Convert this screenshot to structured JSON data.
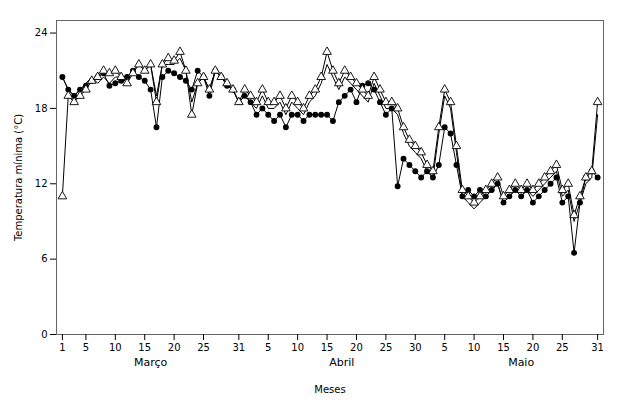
{
  "chart_data": {
    "type": "line",
    "xlabel": "Meses",
    "ylabel": "Temperatura mínima (°C)",
    "categories": [
      "1",
      null,
      null,
      null,
      "5",
      null,
      null,
      null,
      null,
      "10",
      null,
      null,
      null,
      null,
      "15",
      null,
      null,
      null,
      null,
      "20",
      null,
      null,
      null,
      null,
      "25",
      null,
      null,
      null,
      null,
      null,
      "31",
      null,
      null,
      null,
      null,
      "5",
      null,
      null,
      null,
      null,
      "10",
      null,
      null,
      null,
      null,
      "15",
      null,
      null,
      null,
      null,
      "20",
      null,
      null,
      null,
      null,
      "25",
      null,
      null,
      null,
      null,
      "30",
      null,
      null,
      null,
      null,
      "5",
      null,
      null,
      null,
      null,
      "10",
      null,
      null,
      null,
      null,
      "15",
      null,
      null,
      null,
      null,
      "20",
      null,
      null,
      null,
      null,
      "25",
      null,
      null,
      null,
      null,
      null,
      "31"
    ],
    "annotations": [
      {
        "text": "Março",
        "x": 15
      },
      {
        "text": "Abril",
        "x": 47.5
      },
      {
        "text": "Maio",
        "x": 78
      }
    ],
    "ylim": [
      0,
      25
    ],
    "yticks": [
      0,
      6,
      12,
      18,
      24
    ],
    "grid": false,
    "series": [
      {
        "color": "black",
        "line_style": "solid",
        "values": [
          20.5,
          19.5,
          19.0,
          19.5,
          20.0,
          20.5,
          20.0,
          20.5,
          20.0,
          20.5,
          20.5,
          20.5,
          21.0,
          21.5,
          21.0,
          21.5,
          19.0,
          21.5,
          21.5,
          21.5,
          22.0,
          21.0,
          18.5,
          20.0,
          20.5,
          19.5,
          21.0,
          20.5,
          20.0,
          19.5,
          18.5,
          19.0,
          18.5,
          18.0,
          19.0,
          18.0,
          18.0,
          18.5,
          17.5,
          18.5,
          18.0,
          17.5,
          18.5,
          19.0,
          20.0,
          21.5,
          20.5,
          19.5,
          20.5,
          20.0,
          19.5,
          19.0,
          18.5,
          20.0,
          19.0,
          18.0,
          18.0,
          17.5,
          16.0,
          15.0,
          14.5,
          14.0,
          13.0,
          12.5,
          16.0,
          19.0,
          18.0,
          14.5,
          11.0,
          10.5,
          10.0,
          10.5,
          11.0,
          11.5,
          12.0,
          10.5,
          11.0,
          11.5,
          11.0,
          11.5,
          11.0,
          11.5,
          12.0,
          12.5,
          13.0,
          11.0,
          11.5,
          9.0,
          10.5,
          12.0,
          12.5,
          17.5
        ]
      },
      {
        "color": "black",
        "line_style": "solid",
        "marker": "circle",
        "values": [
          20.5,
          19.5,
          19.0,
          19.5,
          19.8,
          20.2,
          20.5,
          20.8,
          19.8,
          20.0,
          20.2,
          20.5,
          21.0,
          20.5,
          20.2,
          19.5,
          16.5,
          20.5,
          21.0,
          20.8,
          20.5,
          20.2,
          19.5,
          21.0,
          20.5,
          19.0,
          21.0,
          20.5,
          19.8,
          19.5,
          18.5,
          19.0,
          18.5,
          17.5,
          18.0,
          17.5,
          17.0,
          17.5,
          16.5,
          17.5,
          17.5,
          17.0,
          17.5,
          17.5,
          17.5,
          17.5,
          17.0,
          18.5,
          19.0,
          19.5,
          18.5,
          19.8,
          20.0,
          19.5,
          18.5,
          17.5,
          18.0,
          11.8,
          14.0,
          13.5,
          13.0,
          12.5,
          13.0,
          12.5,
          13.5,
          16.5,
          16.0,
          13.5,
          11.0,
          11.5,
          11.0,
          11.5,
          11.0,
          11.5,
          12.0,
          10.5,
          11.0,
          11.5,
          11.0,
          11.5,
          10.5,
          11.0,
          11.5,
          12.0,
          12.5,
          10.5,
          11.0,
          6.5,
          10.5,
          12.5,
          13.0,
          12.5
        ]
      },
      {
        "color": "black",
        "line_style": "solid",
        "marker": "triangle",
        "values": [
          11.0,
          19.0,
          18.5,
          19.0,
          19.5,
          20.2,
          20.5,
          21.0,
          20.8,
          21.0,
          20.5,
          20.0,
          20.8,
          21.5,
          21.0,
          21.5,
          18.5,
          21.5,
          22.0,
          21.8,
          22.5,
          21.0,
          17.5,
          20.0,
          20.5,
          19.5,
          21.0,
          20.5,
          20.0,
          19.5,
          18.5,
          19.5,
          19.0,
          18.5,
          19.5,
          18.5,
          18.5,
          19.0,
          18.0,
          19.0,
          18.5,
          18.0,
          19.0,
          19.5,
          20.5,
          22.5,
          21.0,
          20.0,
          21.0,
          20.5,
          20.0,
          19.5,
          19.0,
          20.5,
          19.5,
          18.5,
          18.5,
          18.0,
          16.5,
          15.5,
          15.0,
          14.5,
          13.5,
          13.0,
          16.5,
          19.5,
          18.5,
          15.0,
          11.5,
          11.0,
          10.5,
          11.0,
          11.5,
          12.0,
          12.5,
          11.0,
          11.5,
          12.0,
          11.5,
          12.0,
          11.5,
          12.0,
          12.5,
          13.0,
          13.5,
          11.5,
          12.0,
          9.5,
          11.0,
          12.5,
          13.0,
          18.5
        ]
      }
    ]
  }
}
